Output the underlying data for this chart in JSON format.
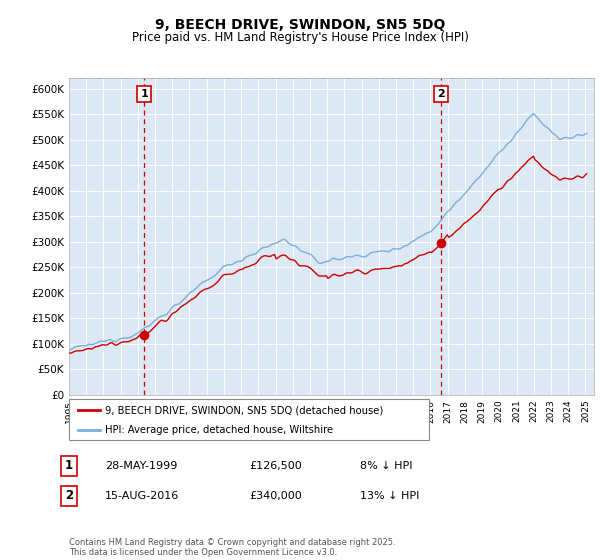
{
  "title": "9, BEECH DRIVE, SWINDON, SN5 5DQ",
  "subtitle": "Price paid vs. HM Land Registry's House Price Index (HPI)",
  "ylim": [
    0,
    620000
  ],
  "yticks": [
    0,
    50000,
    100000,
    150000,
    200000,
    250000,
    300000,
    350000,
    400000,
    450000,
    500000,
    550000,
    600000
  ],
  "legend_entry1": "9, BEECH DRIVE, SWINDON, SN5 5DQ (detached house)",
  "legend_entry2": "HPI: Average price, detached house, Wiltshire",
  "sale1_date": "28-MAY-1999",
  "sale1_price": "£126,500",
  "sale1_hpi": "8% ↓ HPI",
  "sale2_date": "15-AUG-2016",
  "sale2_price": "£340,000",
  "sale2_hpi": "13% ↓ HPI",
  "footer": "Contains HM Land Registry data © Crown copyright and database right 2025.\nThis data is licensed under the Open Government Licence v3.0.",
  "line_color_red": "#cc0000",
  "line_color_blue": "#7aafda",
  "sale1_year": 1999.38,
  "sale2_year": 2016.62,
  "sale1_price_val": 126500,
  "sale2_price_val": 340000,
  "background_color": "#ffffff",
  "plot_bg_color": "#dce9f5",
  "grid_color": "#ffffff"
}
